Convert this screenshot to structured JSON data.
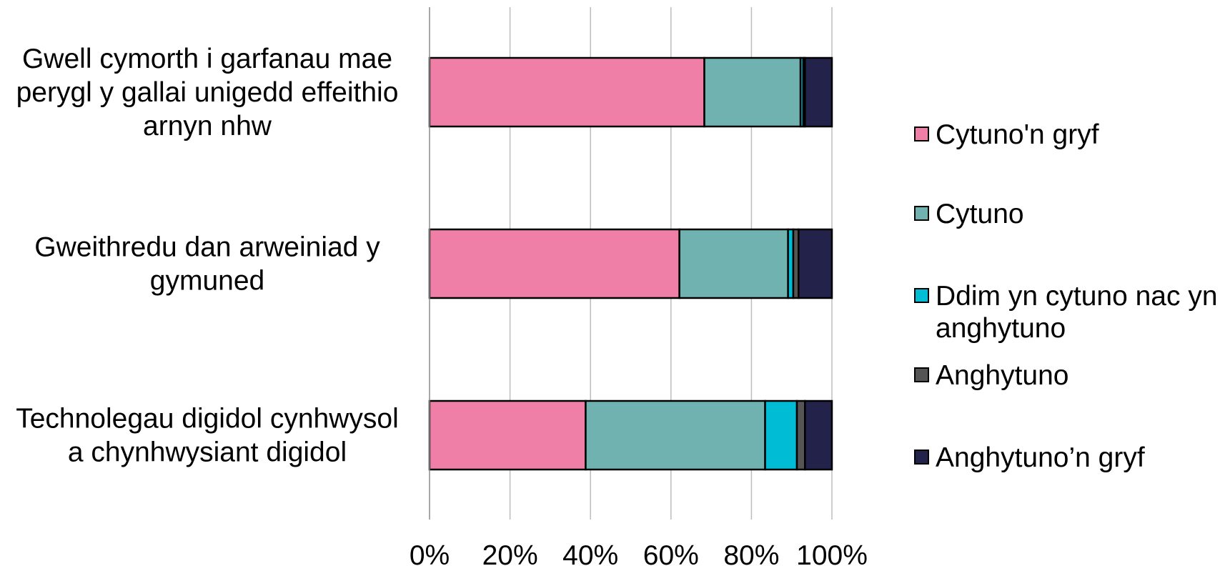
{
  "chart_data": {
    "type": "bar",
    "orientation": "horizontal",
    "stacked": "100%",
    "title": "",
    "xlabel": "",
    "ylabel": "",
    "xlim": [
      0,
      100
    ],
    "x_ticks": [
      "0%",
      "20%",
      "40%",
      "60%",
      "80%",
      "100%"
    ],
    "x_tick_values": [
      0,
      20,
      40,
      60,
      80,
      100
    ],
    "grid": "vertical",
    "legend_position": "right",
    "categories": [
      [
        "Gwell cymorth i garfanau mae",
        "perygl y gallai unigedd effeithio",
        "arnyn nhw"
      ],
      [
        "Gweithredu dan arweiniad y",
        "gymuned"
      ],
      [
        "Technolegau digidol cynhwysol",
        "a chynhwysiant digidol"
      ]
    ],
    "series": [
      {
        "name": "Cytuno'n gryf",
        "color": "#f07fa8",
        "values": [
          68.3,
          62.1,
          38.8
        ]
      },
      {
        "name": "Cytuno",
        "color": "#6fb2b0",
        "values": [
          23.9,
          27.0,
          44.6
        ]
      },
      {
        "name": "Ddim yn cytuno nac yn anghytuno",
        "color": "#00bcd4",
        "values": [
          0.7,
          1.3,
          7.9
        ]
      },
      {
        "name": "Anghytuno",
        "color": "#555555",
        "values": [
          0.4,
          1.3,
          2.0
        ]
      },
      {
        "name": "Anghytuno’n gryf",
        "color": "#22224a",
        "values": [
          6.7,
          8.3,
          6.7
        ]
      }
    ],
    "legend_labels": [
      [
        "Cytuno'n gryf"
      ],
      [
        "Cytuno"
      ],
      [
        "Ddim yn cytuno nac yn",
        "anghytuno"
      ],
      [
        "Anghytuno"
      ],
      [
        "Anghytuno’n gryf"
      ]
    ]
  }
}
